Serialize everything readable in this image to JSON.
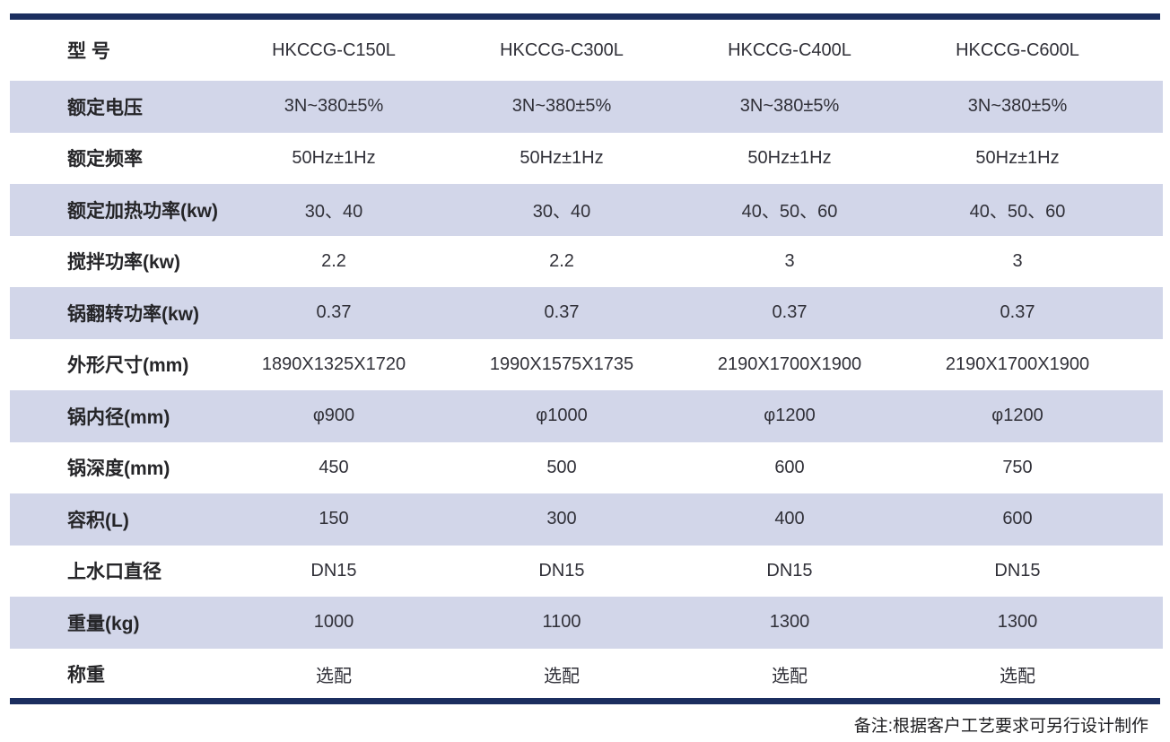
{
  "colors": {
    "navy_bar": "#1b2e5f",
    "stripe": "#d2d6e9",
    "label_text": "#252528",
    "value_text": "#303038"
  },
  "table": {
    "rows": [
      {
        "label": "型 号",
        "values": [
          "HKCCG-C150L",
          "HKCCG-C300L",
          "HKCCG-C400L",
          "HKCCG-C600L"
        ]
      },
      {
        "label": "额定电压",
        "values": [
          "3N~380±5%",
          "3N~380±5%",
          "3N~380±5%",
          "3N~380±5%"
        ]
      },
      {
        "label": "额定频率",
        "values": [
          "50Hz±1Hz",
          "50Hz±1Hz",
          "50Hz±1Hz",
          "50Hz±1Hz"
        ]
      },
      {
        "label": "额定加热功率(kw)",
        "values": [
          "30、40",
          "30、40",
          "40、50、60",
          "40、50、60"
        ]
      },
      {
        "label": "搅拌功率(kw)",
        "values": [
          "2.2",
          "2.2",
          "3",
          "3"
        ]
      },
      {
        "label": "锅翻转功率(kw)",
        "values": [
          "0.37",
          "0.37",
          "0.37",
          "0.37"
        ]
      },
      {
        "label": "外形尺寸(mm)",
        "values": [
          "1890X1325X1720",
          "1990X1575X1735",
          "2190X1700X1900",
          "2190X1700X1900"
        ]
      },
      {
        "label": "锅内径(mm)",
        "values": [
          "φ900",
          "φ1000",
          "φ1200",
          "φ1200"
        ]
      },
      {
        "label": "锅深度(mm)",
        "values": [
          "450",
          "500",
          "600",
          "750"
        ]
      },
      {
        "label": "容积(L)",
        "values": [
          "150",
          "300",
          "400",
          "600"
        ]
      },
      {
        "label": "上水口直径",
        "values": [
          "DN15",
          "DN15",
          "DN15",
          "DN15"
        ]
      },
      {
        "label": "重量(kg)",
        "values": [
          "1000",
          "1100",
          "1300",
          "1300"
        ]
      },
      {
        "label": "称重",
        "values": [
          "选配",
          "选配",
          "选配",
          "选配"
        ]
      }
    ]
  },
  "footer": {
    "note": "备注:根据客户工艺要求可另行设计制作"
  }
}
